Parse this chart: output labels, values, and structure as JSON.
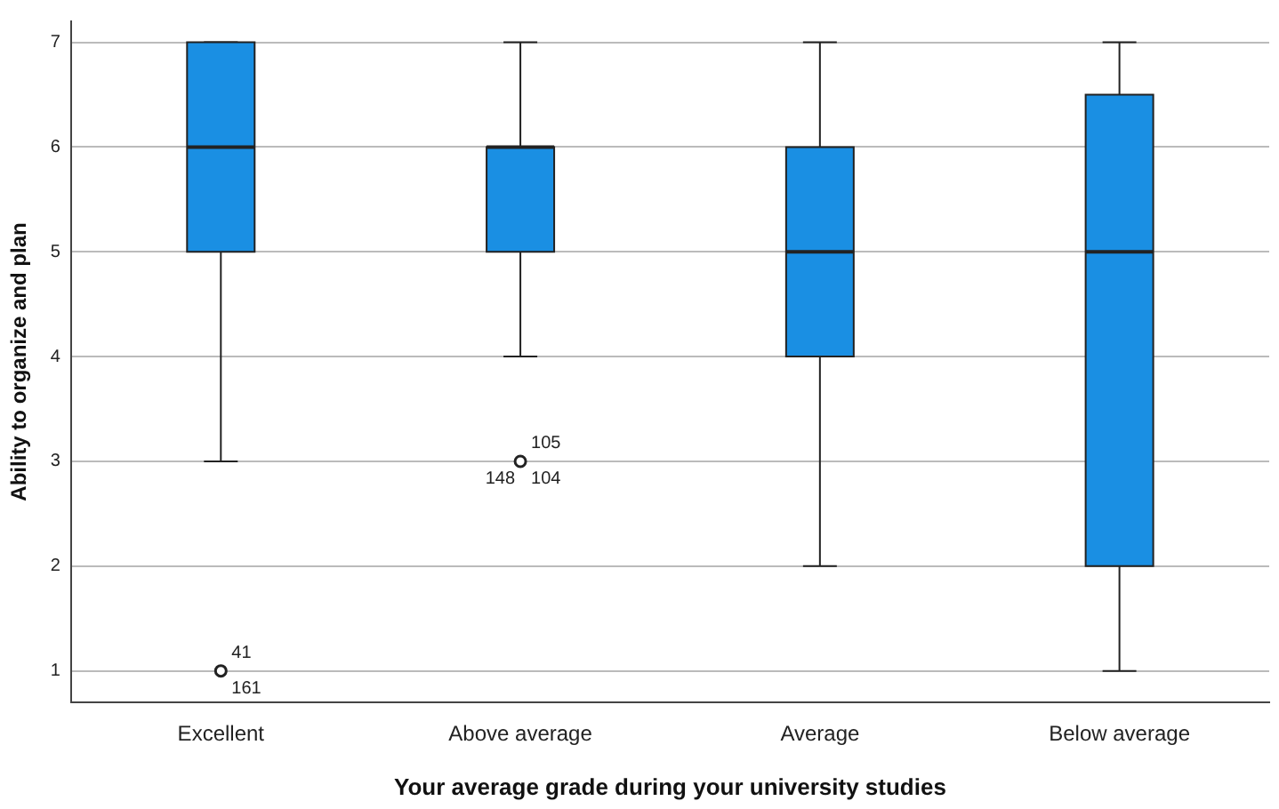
{
  "chart_data": {
    "type": "box",
    "xlabel": "Your average grade during your university studies",
    "ylabel": "Ability to organize and plan",
    "categories": [
      "Excellent",
      "Above average",
      "Average",
      "Below average"
    ],
    "color": "#1a8fe3",
    "boxes": [
      {
        "low": 3,
        "q1": 5,
        "median": 6,
        "q3": 7,
        "high": 7
      },
      {
        "low": 4,
        "q1": 5,
        "median": 6,
        "q3": 6,
        "high": 7
      },
      {
        "low": 2,
        "q1": 4,
        "median": 5,
        "q3": 6,
        "high": 7
      },
      {
        "low": 1,
        "q1": 2,
        "median": 5,
        "q3": 6.5,
        "high": 7
      }
    ],
    "series": [
      {
        "type": "scatter",
        "x": [
          "Excellent",
          "Above average"
        ],
        "values": [
          1,
          3
        ],
        "color": "#222222"
      }
    ],
    "marker": "circle",
    "ylim": [
      0.7,
      7.2
    ],
    "yticks": [
      1,
      2,
      3,
      4,
      5,
      6,
      7
    ],
    "grid": "y",
    "annotations": [
      {
        "text": "41",
        "x": "Excellent",
        "y": 1
      },
      {
        "text": "161",
        "x": "Excellent",
        "y": 1
      },
      {
        "text": "105",
        "x": "Above average",
        "y": 3
      },
      {
        "text": "148",
        "x": "Above average",
        "y": 3
      },
      {
        "text": "104",
        "x": "Above average",
        "y": 3
      }
    ]
  }
}
